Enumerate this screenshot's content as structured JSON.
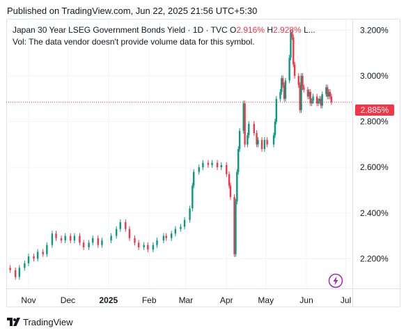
{
  "published": "Published on TradingView.com, Jun 22, 2025 21:56 UTC+5:30",
  "legend": {
    "symbol": "Japan 30 Year LSEG Government Bonds Yield · 1D · TVC",
    "open_label": "O",
    "open_value": "2.916%",
    "high_label": "H",
    "high_value": "2.928%",
    "more": "L...",
    "volume_note": "Vol: The data vendor doesn't provide volume data for this symbol."
  },
  "last_price_label": "2.885%",
  "footer": {
    "brand": "TradingView",
    "logo_icon": "tradingview-logo-icon"
  },
  "colors": {
    "up": "#089981",
    "down": "#f23645",
    "grid": "#f0f3fa",
    "last_line": "#f23645"
  },
  "chart_data": {
    "type": "candlestick",
    "ylim": [
      2.07,
      3.25
    ],
    "y_ticks": [
      {
        "value": 2.2,
        "label": "2.200%"
      },
      {
        "value": 2.4,
        "label": "2.400%"
      },
      {
        "value": 2.6,
        "label": "2.600%"
      },
      {
        "value": 2.8,
        "label": "2.800%"
      },
      {
        "value": 3.0,
        "label": "3.000%"
      },
      {
        "value": 3.2,
        "label": "3.200%"
      }
    ],
    "x_ticks": [
      {
        "label": "Nov",
        "date": "2024-11-01",
        "bold": false
      },
      {
        "label": "Dec",
        "date": "2024-12-01",
        "bold": false
      },
      {
        "label": "2025",
        "date": "2025-01-01",
        "bold": true
      },
      {
        "label": "Feb",
        "date": "2025-02-01",
        "bold": false
      },
      {
        "label": "Mar",
        "date": "2025-03-01",
        "bold": false
      },
      {
        "label": "Apr",
        "date": "2025-04-01",
        "bold": false
      },
      {
        "label": "May",
        "date": "2025-05-01",
        "bold": false
      },
      {
        "label": "Jun",
        "date": "2025-06-01",
        "bold": false
      },
      {
        "label": "Jul",
        "date": "2025-07-01",
        "bold": false
      }
    ],
    "last_value": 2.885,
    "closes": [
      [
        "2024-10-18",
        2.15
      ],
      [
        "2024-10-22",
        2.12
      ],
      [
        "2024-10-25",
        2.16
      ],
      [
        "2024-10-29",
        2.18
      ],
      [
        "2024-11-01",
        2.21
      ],
      [
        "2024-11-05",
        2.2
      ],
      [
        "2024-11-08",
        2.23
      ],
      [
        "2024-11-12",
        2.22
      ],
      [
        "2024-11-15",
        2.26
      ],
      [
        "2024-11-19",
        2.31
      ],
      [
        "2024-11-22",
        2.29
      ],
      [
        "2024-11-26",
        2.28
      ],
      [
        "2024-11-29",
        2.3
      ],
      [
        "2024-12-03",
        2.28
      ],
      [
        "2024-12-06",
        2.3
      ],
      [
        "2024-12-10",
        2.27
      ],
      [
        "2024-12-13",
        2.25
      ],
      [
        "2024-12-17",
        2.27
      ],
      [
        "2024-12-20",
        2.29
      ],
      [
        "2024-12-24",
        2.26
      ],
      [
        "2024-12-27",
        2.28
      ],
      [
        "2025-01-03",
        2.3
      ],
      [
        "2025-01-07",
        2.33
      ],
      [
        "2025-01-10",
        2.36
      ],
      [
        "2025-01-14",
        2.33
      ],
      [
        "2025-01-17",
        2.29
      ],
      [
        "2025-01-21",
        2.27
      ],
      [
        "2025-01-24",
        2.25
      ],
      [
        "2025-01-28",
        2.26
      ],
      [
        "2025-01-31",
        2.24
      ],
      [
        "2025-02-04",
        2.26
      ],
      [
        "2025-02-07",
        2.28
      ],
      [
        "2025-02-12",
        2.3
      ],
      [
        "2025-02-14",
        2.29
      ],
      [
        "2025-02-18",
        2.31
      ],
      [
        "2025-02-21",
        2.33
      ],
      [
        "2025-02-25",
        2.34
      ],
      [
        "2025-02-28",
        2.37
      ],
      [
        "2025-03-04",
        2.42
      ],
      [
        "2025-03-06",
        2.52
      ],
      [
        "2025-03-07",
        2.58
      ],
      [
        "2025-03-11",
        2.6
      ],
      [
        "2025-03-14",
        2.62
      ],
      [
        "2025-03-18",
        2.61
      ],
      [
        "2025-03-21",
        2.62
      ],
      [
        "2025-03-25",
        2.6
      ],
      [
        "2025-03-28",
        2.61
      ],
      [
        "2025-04-01",
        2.57
      ],
      [
        "2025-04-03",
        2.52
      ],
      [
        "2025-04-04",
        2.47
      ],
      [
        "2025-04-07",
        2.22
      ],
      [
        "2025-04-08",
        2.45
      ],
      [
        "2025-04-09",
        2.58
      ],
      [
        "2025-04-10",
        2.68
      ],
      [
        "2025-04-11",
        2.76
      ],
      [
        "2025-04-14",
        2.88
      ],
      [
        "2025-04-15",
        2.7
      ],
      [
        "2025-04-17",
        2.74
      ],
      [
        "2025-04-18",
        2.79
      ],
      [
        "2025-04-22",
        2.75
      ],
      [
        "2025-04-24",
        2.7
      ],
      [
        "2025-04-25",
        2.72
      ],
      [
        "2025-04-28",
        2.68
      ],
      [
        "2025-04-30",
        2.72
      ],
      [
        "2025-05-02",
        2.7
      ],
      [
        "2025-05-07",
        2.74
      ],
      [
        "2025-05-08",
        2.8
      ],
      [
        "2025-05-09",
        2.9
      ],
      [
        "2025-05-12",
        2.93
      ],
      [
        "2025-05-13",
        2.99
      ],
      [
        "2025-05-14",
        2.96
      ],
      [
        "2025-05-15",
        2.9
      ],
      [
        "2025-05-16",
        2.98
      ],
      [
        "2025-05-19",
        3.08
      ],
      [
        "2025-05-20",
        3.19
      ],
      [
        "2025-05-21",
        3.17
      ],
      [
        "2025-05-22",
        3.05
      ],
      [
        "2025-05-23",
        3.0
      ],
      [
        "2025-05-26",
        2.96
      ],
      [
        "2025-05-27",
        2.85
      ],
      [
        "2025-05-28",
        3.0
      ],
      [
        "2025-05-29",
        2.95
      ],
      [
        "2025-05-30",
        2.94
      ],
      [
        "2025-06-02",
        2.91
      ],
      [
        "2025-06-03",
        2.93
      ],
      [
        "2025-06-04",
        2.88
      ],
      [
        "2025-06-05",
        2.89
      ],
      [
        "2025-06-06",
        2.91
      ],
      [
        "2025-06-09",
        2.88
      ],
      [
        "2025-06-10",
        2.89
      ],
      [
        "2025-06-11",
        2.9
      ],
      [
        "2025-06-12",
        2.87
      ],
      [
        "2025-06-13",
        2.92
      ],
      [
        "2025-06-16",
        2.95
      ],
      [
        "2025-06-17",
        2.91
      ],
      [
        "2025-06-18",
        2.93
      ],
      [
        "2025-06-19",
        2.91
      ],
      [
        "2025-06-20",
        2.885
      ]
    ]
  }
}
